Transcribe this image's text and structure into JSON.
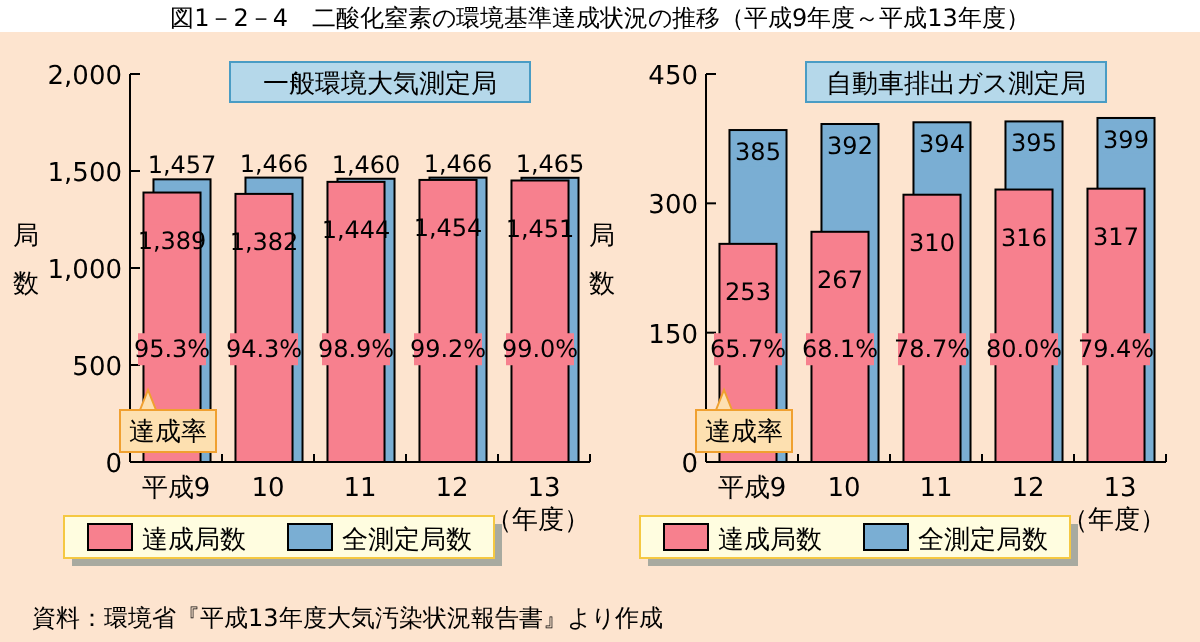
{
  "chart_data": [
    {
      "type": "bar",
      "title": "一般環境大気測定局",
      "categories": [
        "平成9",
        "10",
        "11",
        "12",
        "13"
      ],
      "xlabel": "（年度）",
      "ylabel": "局数",
      "series": [
        {
          "name": "全測定局数",
          "color": "#7aaed3",
          "values": [
            1457,
            1466,
            1460,
            1466,
            1465
          ],
          "value_labels": [
            "1,457",
            "1,466",
            "1,460",
            "1,466",
            "1,465"
          ]
        },
        {
          "name": "達成局数",
          "color": "#f7808e",
          "values": [
            1389,
            1382,
            1444,
            1454,
            1451
          ],
          "value_labels": [
            "1,389",
            "1,382",
            "1,444",
            "1,454",
            "1,451"
          ]
        }
      ],
      "ylim": [
        0,
        2000
      ],
      "yticks": [
        0,
        500,
        {
          "value": 1000,
          "label": "1,000"
        },
        {
          "value": 1500,
          "label": "1,500"
        },
        {
          "value": 2000,
          "label": "2,000"
        }
      ],
      "legend": "bottom",
      "grid": false,
      "annotations": [
        "図1－2－4　二酸化窒素の環境基準達成状況の推移（平成9年度～平成13年度）",
        "資料：環境省『平成13年度大気汚染状況報告書』より作成",
        "達成率",
        "95.3%",
        "94.3%",
        "98.9%",
        "99.2%",
        "99.0%"
      ]
    },
    {
      "type": "bar",
      "title": "自動車排出ガス測定局",
      "categories": [
        "平成9",
        "10",
        "11",
        "12",
        "13"
      ],
      "xlabel": "（年度）",
      "ylabel": "局数",
      "series": [
        {
          "name": "全測定局数",
          "color": "#7aaed3",
          "values": [
            385,
            392,
            394,
            395,
            399
          ]
        },
        {
          "name": "達成局数",
          "color": "#f7808e",
          "values": [
            253,
            267,
            310,
            316,
            317
          ]
        }
      ],
      "ylim": [
        0,
        450
      ],
      "yticks": [
        0,
        150,
        300,
        450
      ],
      "data_labels": true,
      "legend": "bottom",
      "grid": false,
      "annotations": [
        "達成率",
        "65.7%",
        "68.1%",
        "78.7%",
        "80.0%",
        "79.4%"
      ]
    }
  ]
}
